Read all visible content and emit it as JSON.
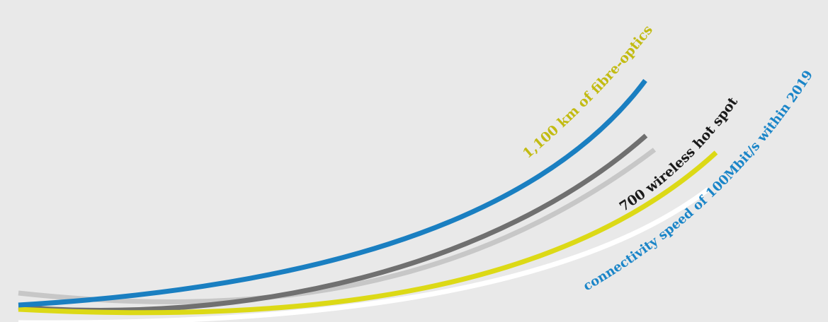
{
  "background_color": "#e9e9e9",
  "curves": [
    {
      "id": "light-gray",
      "color": "#c7c7c7"
    },
    {
      "id": "dark-gray",
      "color": "#707070"
    },
    {
      "id": "yellow",
      "color": "#dcd916"
    },
    {
      "id": "white",
      "color": "#ffffff"
    },
    {
      "id": "blue",
      "color": "#1a7fc1"
    }
  ],
  "labels": {
    "fibre": {
      "text": "1,100 km of fibre-optics",
      "color": "#c2bb12"
    },
    "hotspot": {
      "text": "700 wireless hot spot",
      "color": "#1a1a1a"
    },
    "connectivity": {
      "text": "connectivity speed of 100Mbit/s within 2019",
      "color": "#1a85c8"
    }
  }
}
